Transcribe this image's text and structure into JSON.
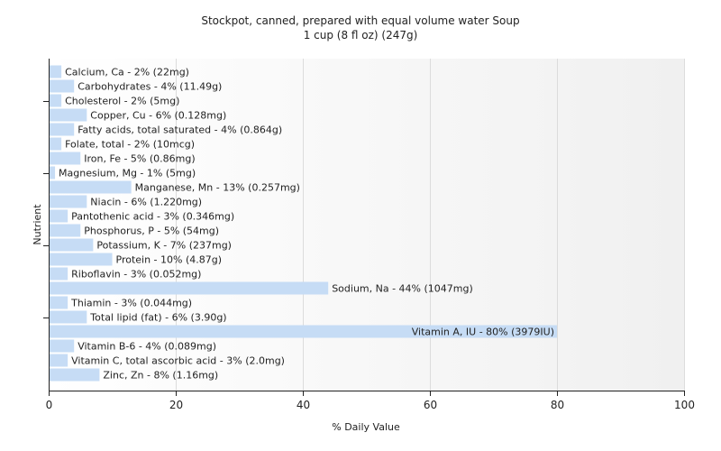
{
  "chart_data": {
    "type": "bar",
    "orientation": "horizontal",
    "title": "Stockpot, canned, prepared with equal volume water Soup",
    "subtitle": "1 cup (8 fl oz) (247g)",
    "xlabel": "% Daily Value",
    "ylabel": "Nutrient",
    "xlim": [
      0,
      100
    ],
    "xticks": [
      0,
      20,
      40,
      60,
      80,
      100
    ],
    "grid": true,
    "bar_color": "#c6dcf5",
    "categories": [
      "Calcium, Ca",
      "Carbohydrates",
      "Cholesterol",
      "Copper, Cu",
      "Fatty acids, total saturated",
      "Folate, total",
      "Iron, Fe",
      "Magnesium, Mg",
      "Manganese, Mn",
      "Niacin",
      "Pantothenic acid",
      "Phosphorus, P",
      "Potassium, K",
      "Protein",
      "Riboflavin",
      "Sodium, Na",
      "Thiamin",
      "Total lipid (fat)",
      "Vitamin A, IU",
      "Vitamin B-6",
      "Vitamin C, total ascorbic acid",
      "Zinc, Zn"
    ],
    "values": [
      2,
      4,
      2,
      6,
      4,
      2,
      5,
      1,
      13,
      6,
      3,
      5,
      7,
      10,
      3,
      44,
      3,
      6,
      80,
      4,
      3,
      8
    ],
    "labels": [
      "Calcium, Ca - 2% (22mg)",
      "Carbohydrates - 4% (11.49g)",
      "Cholesterol - 2% (5mg)",
      "Copper, Cu - 6% (0.128mg)",
      "Fatty acids, total saturated - 4% (0.864g)",
      "Folate, total - 2% (10mcg)",
      "Iron, Fe - 5% (0.86mg)",
      "Magnesium, Mg - 1% (5mg)",
      "Manganese, Mn - 13% (0.257mg)",
      "Niacin - 6% (1.220mg)",
      "Pantothenic acid - 3% (0.346mg)",
      "Phosphorus, P - 5% (54mg)",
      "Potassium, K - 7% (237mg)",
      "Protein - 10% (4.87g)",
      "Riboflavin - 3% (0.052mg)",
      "Sodium, Na - 44% (1047mg)",
      "Thiamin - 3% (0.044mg)",
      "Total lipid (fat) - 6% (3.90g)",
      "Vitamin A, IU - 80% (3979IU)",
      "Vitamin B-6 - 4% (0.089mg)",
      "Vitamin C, total ascorbic acid - 3% (2.0mg)",
      "Zinc, Zn - 8% (1.16mg)"
    ]
  }
}
